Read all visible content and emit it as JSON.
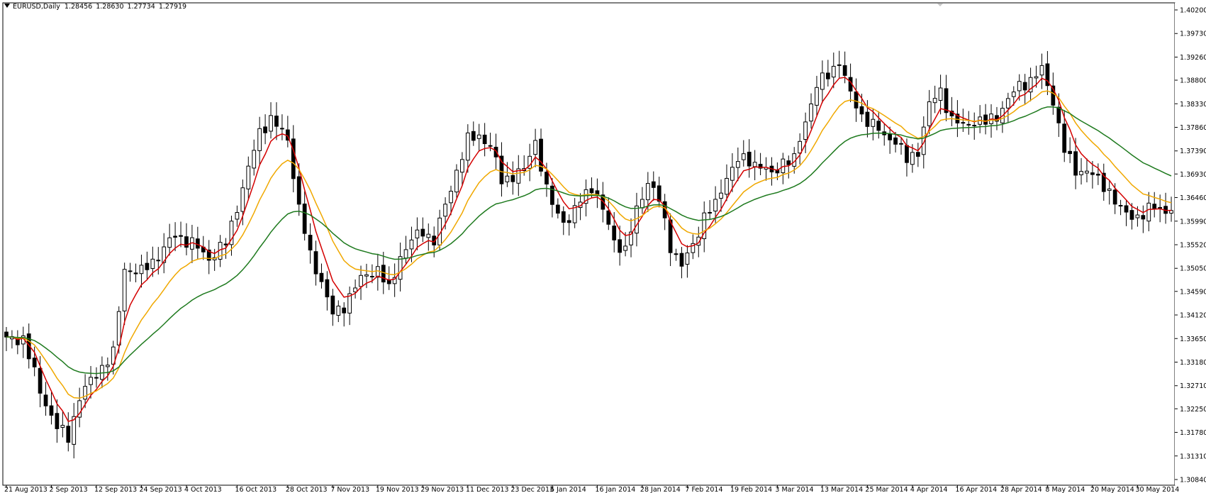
{
  "header": {
    "symbol": "EURUSD,Daily",
    "open": "1.28456",
    "high": "1.28630",
    "low": "1.27734",
    "close": "1.27919"
  },
  "colors": {
    "background": "#ffffff",
    "candle_outline": "#000000",
    "bull_body": "#ffffff",
    "bear_body": "#000000",
    "ma_fast": "#d40000",
    "ma_mid": "#f0a800",
    "ma_slow": "#1e7a1e"
  },
  "chart_data": {
    "type": "candlestick",
    "ylim": [
      1.3084,
      1.402
    ],
    "y_ticks": [
      "1.40200",
      "1.39730",
      "1.39260",
      "1.38800",
      "1.38330",
      "1.37860",
      "1.37390",
      "1.36930",
      "1.36460",
      "1.35990",
      "1.35520",
      "1.35050",
      "1.34590",
      "1.34120",
      "1.33650",
      "1.33180",
      "1.32710",
      "1.32250",
      "1.31780",
      "1.31310",
      "1.30840"
    ],
    "x_labels": [
      {
        "label": "21 Aug 2013",
        "index": 0
      },
      {
        "label": "2 Sep 2013",
        "index": 8
      },
      {
        "label": "12 Sep 2013",
        "index": 16
      },
      {
        "label": "24 Sep 2013",
        "index": 24
      },
      {
        "label": "4 Oct 2013",
        "index": 32
      },
      {
        "label": "16 Oct 2013",
        "index": 41
      },
      {
        "label": "28 Oct 2013",
        "index": 50
      },
      {
        "label": "7 Nov 2013",
        "index": 58
      },
      {
        "label": "19 Nov 2013",
        "index": 66
      },
      {
        "label": "29 Nov 2013",
        "index": 74
      },
      {
        "label": "11 Dec 2013",
        "index": 82
      },
      {
        "label": "23 Dec 2013",
        "index": 90
      },
      {
        "label": "6 Jan 2014",
        "index": 97
      },
      {
        "label": "16 Jan 2014",
        "index": 105
      },
      {
        "label": "28 Jan 2014",
        "index": 113
      },
      {
        "label": "7 Feb 2014",
        "index": 121
      },
      {
        "label": "19 Feb 2014",
        "index": 129
      },
      {
        "label": "3 Mar 2014",
        "index": 137
      },
      {
        "label": "13 Mar 2014",
        "index": 145
      },
      {
        "label": "25 Mar 2014",
        "index": 153
      },
      {
        "label": "4 Apr 2014",
        "index": 161
      },
      {
        "label": "16 Apr 2014",
        "index": 169
      },
      {
        "label": "28 Apr 2014",
        "index": 177
      },
      {
        "label": "8 May 2014",
        "index": 185
      },
      {
        "label": "20 May 2014",
        "index": 193
      },
      {
        "label": "30 May 2014",
        "index": 201
      }
    ],
    "close_points": [
      [
        0,
        1.3362
      ],
      [
        3,
        1.3366
      ],
      [
        6,
        1.326
      ],
      [
        9,
        1.3188
      ],
      [
        11,
        1.3168
      ],
      [
        13,
        1.3248
      ],
      [
        16,
        1.3296
      ],
      [
        19,
        1.3335
      ],
      [
        21,
        1.3505
      ],
      [
        24,
        1.3497
      ],
      [
        27,
        1.3531
      ],
      [
        30,
        1.3571
      ],
      [
        33,
        1.3555
      ],
      [
        36,
        1.3525
      ],
      [
        39,
        1.3555
      ],
      [
        42,
        1.3665
      ],
      [
        45,
        1.3778
      ],
      [
        47,
        1.3802
      ],
      [
        50,
        1.3763
      ],
      [
        52,
        1.3625
      ],
      [
        54,
        1.353
      ],
      [
        56,
        1.348
      ],
      [
        58,
        1.3412
      ],
      [
        60,
        1.343
      ],
      [
        62,
        1.347
      ],
      [
        64,
        1.3492
      ],
      [
        66,
        1.3505
      ],
      [
        68,
        1.346
      ],
      [
        70,
        1.353
      ],
      [
        72,
        1.356
      ],
      [
        74,
        1.358
      ],
      [
        76,
        1.356
      ],
      [
        78,
        1.363
      ],
      [
        80,
        1.37
      ],
      [
        82,
        1.376
      ],
      [
        84,
        1.377
      ],
      [
        86,
        1.375
      ],
      [
        88,
        1.368
      ],
      [
        90,
        1.369
      ],
      [
        92,
        1.37
      ],
      [
        94,
        1.376
      ],
      [
        96,
        1.366
      ],
      [
        98,
        1.361
      ],
      [
        100,
        1.36
      ],
      [
        102,
        1.364
      ],
      [
        104,
        1.367
      ],
      [
        106,
        1.362
      ],
      [
        108,
        1.356
      ],
      [
        110,
        1.354
      ],
      [
        112,
        1.362
      ],
      [
        114,
        1.368
      ],
      [
        116,
        1.364
      ],
      [
        118,
        1.355
      ],
      [
        120,
        1.351
      ],
      [
        122,
        1.355
      ],
      [
        124,
        1.361
      ],
      [
        126,
        1.363
      ],
      [
        128,
        1.369
      ],
      [
        130,
        1.372
      ],
      [
        132,
        1.372
      ],
      [
        134,
        1.371
      ],
      [
        136,
        1.369
      ],
      [
        138,
        1.372
      ],
      [
        140,
        1.372
      ],
      [
        142,
        1.38
      ],
      [
        144,
        1.387
      ],
      [
        146,
        1.389
      ],
      [
        148,
        1.392
      ],
      [
        150,
        1.385
      ],
      [
        152,
        1.381
      ],
      [
        154,
        1.379
      ],
      [
        156,
        1.377
      ],
      [
        158,
        1.376
      ],
      [
        160,
        1.372
      ],
      [
        162,
        1.374
      ],
      [
        164,
        1.383
      ],
      [
        166,
        1.386
      ],
      [
        168,
        1.38
      ],
      [
        170,
        1.379
      ],
      [
        172,
        1.38
      ],
      [
        174,
        1.3795
      ],
      [
        176,
        1.381
      ],
      [
        178,
        1.384
      ],
      [
        180,
        1.387
      ],
      [
        182,
        1.388
      ],
      [
        184,
        1.39
      ],
      [
        186,
        1.384
      ],
      [
        188,
        1.374
      ],
      [
        190,
        1.37
      ],
      [
        192,
        1.37
      ],
      [
        194,
        1.368
      ],
      [
        196,
        1.366
      ],
      [
        198,
        1.362
      ],
      [
        200,
        1.361
      ],
      [
        202,
        1.361
      ],
      [
        204,
        1.363
      ],
      [
        206,
        1.362
      ]
    ],
    "series": [
      {
        "name": "",
        "period": 5,
        "color": "#d40000"
      },
      {
        "name": "",
        "period": 12,
        "color": "#f0a800"
      },
      {
        "name": "",
        "period": 30,
        "color": "#1e7a1e"
      }
    ]
  }
}
